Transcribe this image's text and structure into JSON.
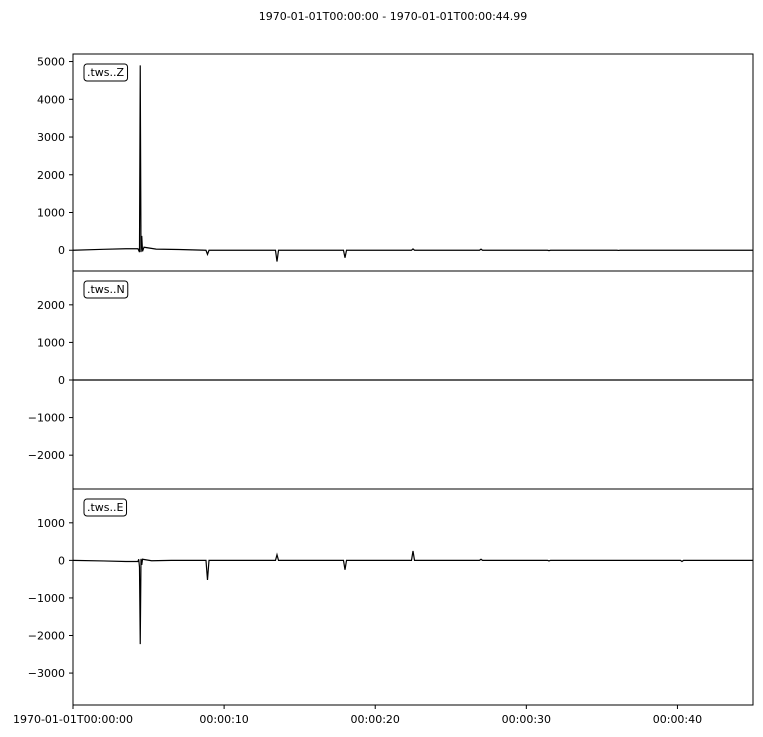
{
  "chart_data": {
    "type": "line",
    "title": "1970-01-01T00:00:00  -  1970-01-01T00:00:44.99",
    "x_range_s": [
      0,
      45
    ],
    "x_ticks": [
      {
        "t": 0,
        "label": "1970-01-01T00:00:00"
      },
      {
        "t": 10,
        "label": "00:00:10"
      },
      {
        "t": 20,
        "label": "00:00:20"
      },
      {
        "t": 30,
        "label": "00:00:30"
      },
      {
        "t": 40,
        "label": "00:00:40"
      }
    ],
    "line_color": "#000000",
    "panels": [
      {
        "trace_label": ".tws..Z",
        "ylim": [
          -550,
          5200
        ],
        "y_ticks": [
          {
            "v": 0,
            "label": "0"
          },
          {
            "v": 1000,
            "label": "1000"
          },
          {
            "v": 2000,
            "label": "2000"
          },
          {
            "v": 3000,
            "label": "3000"
          },
          {
            "v": 4000,
            "label": "4000"
          },
          {
            "v": 5000,
            "label": "5000"
          }
        ],
        "points": [
          [
            0,
            0
          ],
          [
            2,
            25
          ],
          [
            3.5,
            40
          ],
          [
            4.3,
            40
          ],
          [
            4.4,
            -50
          ],
          [
            4.45,
            4900
          ],
          [
            4.5,
            -50
          ],
          [
            4.55,
            380
          ],
          [
            4.6,
            -30
          ],
          [
            4.7,
            80
          ],
          [
            5.5,
            30
          ],
          [
            7,
            20
          ],
          [
            8.8,
            0
          ],
          [
            8.9,
            -110
          ],
          [
            9,
            0
          ],
          [
            13.4,
            0
          ],
          [
            13.5,
            -300
          ],
          [
            13.6,
            0
          ],
          [
            17.9,
            0
          ],
          [
            18,
            -200
          ],
          [
            18.1,
            0
          ],
          [
            22.4,
            0
          ],
          [
            22.5,
            35
          ],
          [
            22.6,
            0
          ],
          [
            26.9,
            0
          ],
          [
            27,
            30
          ],
          [
            27.1,
            0
          ],
          [
            31.4,
            0
          ],
          [
            31.5,
            -10
          ],
          [
            31.6,
            0
          ],
          [
            36,
            0
          ],
          [
            36.1,
            -5
          ],
          [
            36.2,
            0
          ],
          [
            45,
            0
          ]
        ]
      },
      {
        "trace_label": ".tws..N",
        "ylim": [
          -2900,
          2900
        ],
        "y_ticks": [
          {
            "v": -2000,
            "label": "−2000"
          },
          {
            "v": -1000,
            "label": "−1000"
          },
          {
            "v": 0,
            "label": "0"
          },
          {
            "v": 1000,
            "label": "1000"
          },
          {
            "v": 2000,
            "label": "2000"
          }
        ],
        "points": [
          [
            0,
            0
          ],
          [
            45,
            0
          ]
        ]
      },
      {
        "trace_label": ".tws..E",
        "ylim": [
          -3850,
          1900
        ],
        "y_ticks": [
          {
            "v": -3000,
            "label": "−3000"
          },
          {
            "v": -2000,
            "label": "−2000"
          },
          {
            "v": -1000,
            "label": "−1000"
          },
          {
            "v": 0,
            "label": "0"
          },
          {
            "v": 1000,
            "label": "1000"
          }
        ],
        "points": [
          [
            0,
            0
          ],
          [
            2,
            -15
          ],
          [
            3.5,
            -30
          ],
          [
            4.3,
            -30
          ],
          [
            4.35,
            30
          ],
          [
            4.4,
            -180
          ],
          [
            4.45,
            -2230
          ],
          [
            4.5,
            40
          ],
          [
            4.55,
            -120
          ],
          [
            4.6,
            30
          ],
          [
            5.2,
            -10
          ],
          [
            6.5,
            0
          ],
          [
            8.8,
            0
          ],
          [
            8.9,
            -520
          ],
          [
            9,
            0
          ],
          [
            13.4,
            0
          ],
          [
            13.5,
            150
          ],
          [
            13.6,
            0
          ],
          [
            17.9,
            0
          ],
          [
            18,
            -250
          ],
          [
            18.1,
            0
          ],
          [
            22.4,
            0
          ],
          [
            22.5,
            250
          ],
          [
            22.6,
            0
          ],
          [
            26.9,
            0
          ],
          [
            27,
            30
          ],
          [
            27.1,
            0
          ],
          [
            31.4,
            0
          ],
          [
            31.5,
            -15
          ],
          [
            31.6,
            0
          ],
          [
            40.2,
            0
          ],
          [
            40.3,
            -30
          ],
          [
            40.4,
            0
          ],
          [
            45,
            0
          ]
        ]
      }
    ]
  }
}
